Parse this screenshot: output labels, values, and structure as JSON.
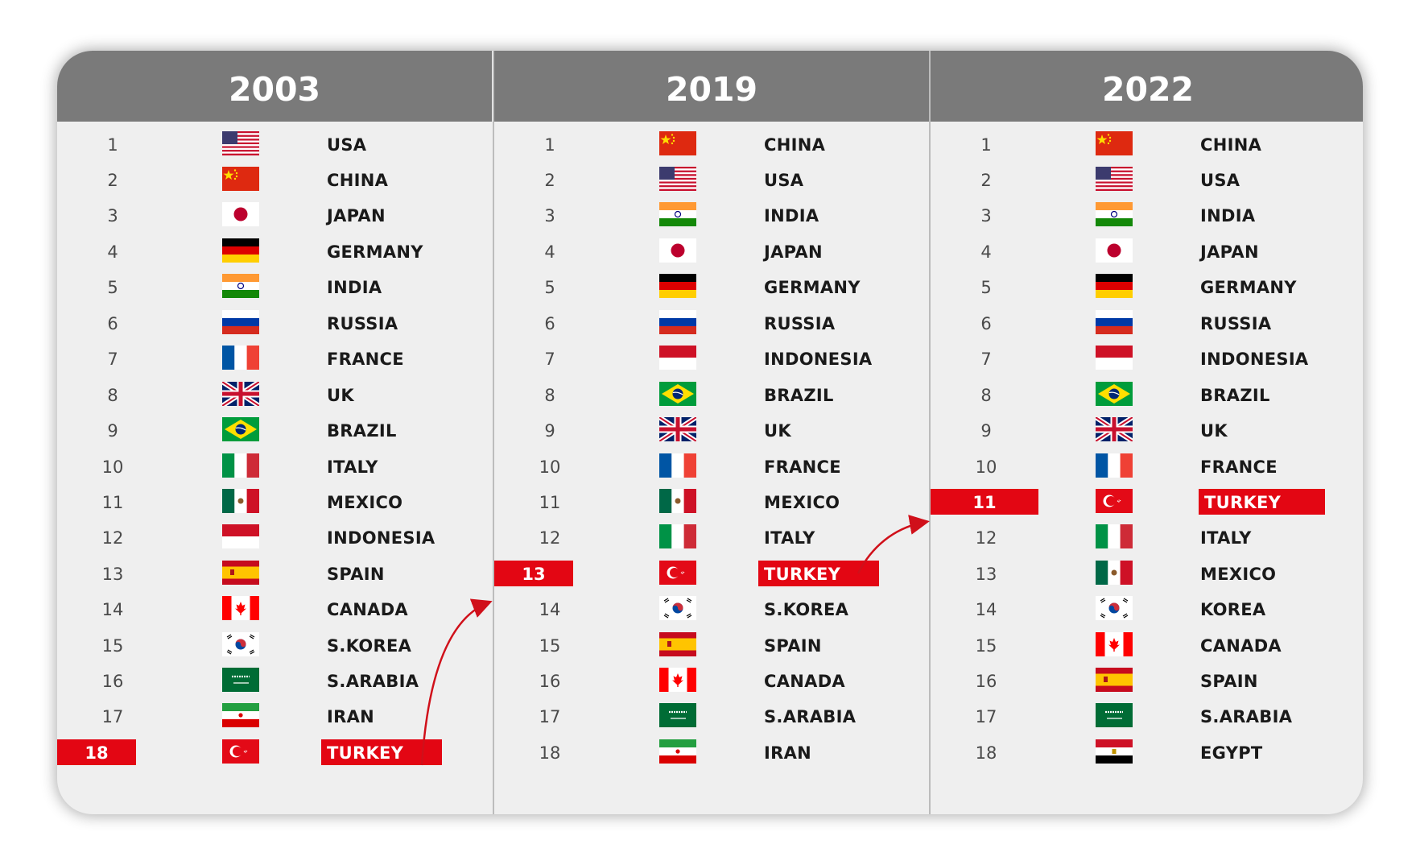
{
  "columns": [
    {
      "year": "2003",
      "rows": [
        {
          "rank": "1",
          "country": "USA",
          "flag": "usa-flag"
        },
        {
          "rank": "2",
          "country": "CHINA",
          "flag": "china-flag"
        },
        {
          "rank": "3",
          "country": "JAPAN",
          "flag": "japan-flag"
        },
        {
          "rank": "4",
          "country": "GERMANY",
          "flag": "germany-flag"
        },
        {
          "rank": "5",
          "country": "INDIA",
          "flag": "india-flag"
        },
        {
          "rank": "6",
          "country": "RUSSIA",
          "flag": "russia-flag"
        },
        {
          "rank": "7",
          "country": "FRANCE",
          "flag": "france-flag"
        },
        {
          "rank": "8",
          "country": "UK",
          "flag": "uk-flag"
        },
        {
          "rank": "9",
          "country": "BRAZIL",
          "flag": "brazil-flag"
        },
        {
          "rank": "10",
          "country": "ITALY",
          "flag": "italy-flag"
        },
        {
          "rank": "11",
          "country": "MEXICO",
          "flag": "mexico-flag"
        },
        {
          "rank": "12",
          "country": "INDONESIA",
          "flag": "indonesia-flag"
        },
        {
          "rank": "13",
          "country": "SPAIN",
          "flag": "spain-flag"
        },
        {
          "rank": "14",
          "country": "CANADA",
          "flag": "canada-flag"
        },
        {
          "rank": "15",
          "country": "S.KOREA",
          "flag": "south-korea-flag"
        },
        {
          "rank": "16",
          "country": "S.ARABIA",
          "flag": "saudi-arabia-flag"
        },
        {
          "rank": "17",
          "country": "IRAN",
          "flag": "iran-flag"
        },
        {
          "rank": "18",
          "country": "TURKEY",
          "flag": "turkey-flag",
          "highlight": true
        }
      ]
    },
    {
      "year": "2019",
      "rows": [
        {
          "rank": "1",
          "country": "CHINA",
          "flag": "china-flag"
        },
        {
          "rank": "2",
          "country": "USA",
          "flag": "usa-flag"
        },
        {
          "rank": "3",
          "country": "INDIA",
          "flag": "india-flag"
        },
        {
          "rank": "4",
          "country": "JAPAN",
          "flag": "japan-flag"
        },
        {
          "rank": "5",
          "country": "GERMANY",
          "flag": "germany-flag"
        },
        {
          "rank": "6",
          "country": "RUSSIA",
          "flag": "russia-flag"
        },
        {
          "rank": "7",
          "country": "INDONESIA",
          "flag": "indonesia-flag"
        },
        {
          "rank": "8",
          "country": "BRAZIL",
          "flag": "brazil-flag"
        },
        {
          "rank": "9",
          "country": "UK",
          "flag": "uk-flag"
        },
        {
          "rank": "10",
          "country": "FRANCE",
          "flag": "france-flag"
        },
        {
          "rank": "11",
          "country": "MEXICO",
          "flag": "mexico-flag"
        },
        {
          "rank": "12",
          "country": "ITALY",
          "flag": "italy-flag"
        },
        {
          "rank": "13",
          "country": "TURKEY",
          "flag": "turkey-flag",
          "highlight": true
        },
        {
          "rank": "14",
          "country": "S.KOREA",
          "flag": "south-korea-flag"
        },
        {
          "rank": "15",
          "country": "SPAIN",
          "flag": "spain-flag"
        },
        {
          "rank": "16",
          "country": "CANADA",
          "flag": "canada-flag"
        },
        {
          "rank": "17",
          "country": "S.ARABIA",
          "flag": "saudi-arabia-flag"
        },
        {
          "rank": "18",
          "country": "IRAN",
          "flag": "iran-flag"
        }
      ]
    },
    {
      "year": "2022",
      "rows": [
        {
          "rank": "1",
          "country": "CHINA",
          "flag": "china-flag"
        },
        {
          "rank": "2",
          "country": "USA",
          "flag": "usa-flag"
        },
        {
          "rank": "3",
          "country": "INDIA",
          "flag": "india-flag"
        },
        {
          "rank": "4",
          "country": "JAPAN",
          "flag": "japan-flag"
        },
        {
          "rank": "5",
          "country": "GERMANY",
          "flag": "germany-flag"
        },
        {
          "rank": "6",
          "country": "RUSSIA",
          "flag": "russia-flag"
        },
        {
          "rank": "7",
          "country": "INDONESIA",
          "flag": "indonesia-flag"
        },
        {
          "rank": "8",
          "country": "BRAZIL",
          "flag": "brazil-flag"
        },
        {
          "rank": "9",
          "country": "UK",
          "flag": "uk-flag"
        },
        {
          "rank": "10",
          "country": "FRANCE",
          "flag": "france-flag"
        },
        {
          "rank": "11",
          "country": "TURKEY",
          "flag": "turkey-flag",
          "highlight": true
        },
        {
          "rank": "12",
          "country": "ITALY",
          "flag": "italy-flag"
        },
        {
          "rank": "13",
          "country": "MEXICO",
          "flag": "mexico-flag"
        },
        {
          "rank": "14",
          "country": "KOREA",
          "flag": "south-korea-flag"
        },
        {
          "rank": "15",
          "country": "CANADA",
          "flag": "canada-flag"
        },
        {
          "rank": "16",
          "country": "SPAIN",
          "flag": "spain-flag"
        },
        {
          "rank": "17",
          "country": "S.ARABIA",
          "flag": "saudi-arabia-flag"
        },
        {
          "rank": "18",
          "country": "EGYPT",
          "flag": "egypt-flag"
        }
      ]
    }
  ],
  "colors": {
    "header_bg": "#7a7a7a",
    "panel_bg": "#efefef",
    "highlight": "#e30613",
    "arrow": "#d0101a"
  }
}
